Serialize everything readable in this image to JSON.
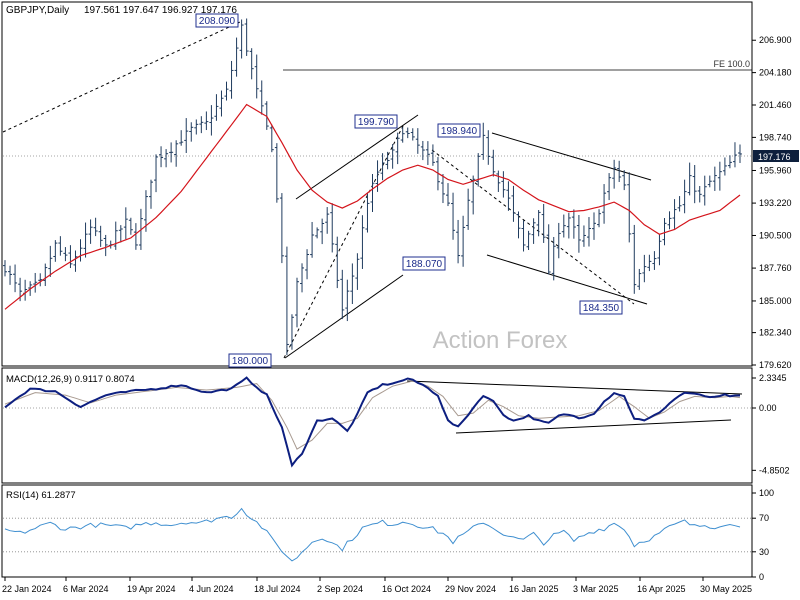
{
  "header": {
    "symbol_label": "GBPJPY,Daily",
    "ohlc": "197.561 197.647 196.927 197.176"
  },
  "watermark": "Action Forex",
  "colors": {
    "candles": "#1f3b5e",
    "sma": "#d4141b",
    "macd_line": "#0d1f80",
    "signal_line": "#a89a90",
    "rsi_line": "#3f8fd0",
    "grid_dotted": "#888888",
    "price_tag_bg": "#0d1f3c",
    "label_border": "#1f2f8f"
  },
  "chart_data": [
    {
      "type": "candlestick",
      "panel": "price",
      "ylim": [
        179.62,
        208.6
      ],
      "y_ticks": [
        "206.900",
        "204.180",
        "201.460",
        "198.740",
        "195.960",
        "193.220",
        "190.500",
        "187.760",
        "185.000",
        "182.340",
        "179.620"
      ],
      "x_ticks": [
        "22 Jan 2024",
        "6 Mar 2024",
        "19 Apr 2024",
        "4 Jun 2024",
        "18 Jul 2024",
        "2 Sep 2024",
        "16 Oct 2024",
        "29 Nov 2024",
        "16 Jan 2025",
        "3 Mar 2025",
        "16 Apr 2025",
        "30 May 2025"
      ],
      "last_price": 197.176,
      "last_price_label": "197.176",
      "fe_level": 204.4,
      "fe_label": "FE 100.0",
      "swing_labels": [
        {
          "text": "208.090",
          "value": 208.09,
          "x_day": 47
        },
        {
          "text": "180.000",
          "value": 180.0,
          "x_day": 56
        },
        {
          "text": "199.790",
          "value": 199.79,
          "x_day": 79
        },
        {
          "text": "188.070",
          "value": 188.07,
          "x_day": 91
        },
        {
          "text": "198.940",
          "value": 198.94,
          "x_day": 95
        },
        {
          "text": "184.350",
          "value": 184.35,
          "x_day": 125
        }
      ],
      "anchors": [
        [
          0,
          187.8
        ],
        [
          3,
          185.6
        ],
        [
          7,
          186.5
        ],
        [
          10,
          189.7
        ],
        [
          13,
          188.0
        ],
        [
          17,
          191.1
        ],
        [
          20,
          189.5
        ],
        [
          24,
          191.6
        ],
        [
          26,
          190.0
        ],
        [
          30,
          197.0
        ],
        [
          33,
          197.8
        ],
        [
          37,
          199.4
        ],
        [
          40,
          199.9
        ],
        [
          44,
          202.6
        ],
        [
          47,
          208.0
        ],
        [
          50,
          202.6
        ],
        [
          53,
          198.0
        ],
        [
          55,
          189.0
        ],
        [
          56,
          181.0
        ],
        [
          58,
          186.4
        ],
        [
          61,
          190.5
        ],
        [
          64,
          192.1
        ],
        [
          67,
          184.2
        ],
        [
          70,
          188.6
        ],
        [
          72,
          193.4
        ],
        [
          74,
          195.8
        ],
        [
          77,
          197.4
        ],
        [
          79,
          199.4
        ],
        [
          82,
          198.0
        ],
        [
          85,
          196.5
        ],
        [
          88,
          193.0
        ],
        [
          90,
          188.6
        ],
        [
          92,
          193.3
        ],
        [
          95,
          198.6
        ],
        [
          97,
          196.1
        ],
        [
          100,
          193.5
        ],
        [
          103,
          189.6
        ],
        [
          106,
          192.7
        ],
        [
          108,
          187.5
        ],
        [
          110,
          191.0
        ],
        [
          112,
          192.0
        ],
        [
          114,
          189.9
        ],
        [
          117,
          191.3
        ],
        [
          119,
          194.0
        ],
        [
          121,
          196.2
        ],
        [
          123,
          194.6
        ],
        [
          125,
          186.5
        ],
        [
          127,
          188.0
        ],
        [
          129,
          188.8
        ],
        [
          131,
          191.8
        ],
        [
          134,
          193.0
        ],
        [
          136,
          195.2
        ],
        [
          138,
          193.8
        ],
        [
          140,
          195.0
        ],
        [
          143,
          196.1
        ],
        [
          145,
          197.0
        ],
        [
          146,
          197.176
        ]
      ],
      "sma_anchors": [
        [
          0,
          184.3
        ],
        [
          5,
          186.0
        ],
        [
          10,
          187.5
        ],
        [
          15,
          188.8
        ],
        [
          20,
          189.5
        ],
        [
          25,
          190.3
        ],
        [
          30,
          192.0
        ],
        [
          35,
          194.2
        ],
        [
          40,
          197.0
        ],
        [
          45,
          199.8
        ],
        [
          48,
          201.5
        ],
        [
          52,
          200.5
        ],
        [
          55,
          198.3
        ],
        [
          58,
          196.0
        ],
        [
          61,
          194.3
        ],
        [
          64,
          193.3
        ],
        [
          67,
          192.8
        ],
        [
          70,
          193.4
        ],
        [
          73,
          194.4
        ],
        [
          76,
          195.3
        ],
        [
          79,
          196.0
        ],
        [
          82,
          196.4
        ],
        [
          85,
          196.0
        ],
        [
          88,
          195.2
        ],
        [
          91,
          194.8
        ],
        [
          94,
          195.2
        ],
        [
          97,
          195.6
        ],
        [
          100,
          195.2
        ],
        [
          103,
          194.3
        ],
        [
          106,
          193.5
        ],
        [
          109,
          193.0
        ],
        [
          112,
          192.5
        ],
        [
          115,
          192.6
        ],
        [
          118,
          192.9
        ],
        [
          121,
          193.3
        ],
        [
          124,
          192.6
        ],
        [
          127,
          191.4
        ],
        [
          130,
          190.6
        ],
        [
          133,
          191.0
        ],
        [
          136,
          191.8
        ],
        [
          139,
          192.2
        ],
        [
          142,
          192.6
        ],
        [
          146,
          193.9
        ]
      ]
    },
    {
      "type": "line",
      "panel": "macd",
      "title": "MACD(12,26,9) 0.9117 0.8074",
      "ylim": [
        -5.1,
        3.0
      ],
      "y_ticks": [
        "2.3345",
        "0.00",
        "-4.8502"
      ],
      "series": [
        {
          "role": "macd",
          "anchors": [
            [
              0,
              0.1
            ],
            [
              5,
              1.5
            ],
            [
              10,
              1.3
            ],
            [
              15,
              0.1
            ],
            [
              20,
              1.0
            ],
            [
              25,
              1.3
            ],
            [
              30,
              1.5
            ],
            [
              35,
              1.8
            ],
            [
              40,
              1.2
            ],
            [
              45,
              1.5
            ],
            [
              48,
              2.3
            ],
            [
              52,
              1.0
            ],
            [
              55,
              -1.5
            ],
            [
              57,
              -4.5
            ],
            [
              59,
              -3.5
            ],
            [
              62,
              -1.0
            ],
            [
              65,
              -0.8
            ],
            [
              68,
              -1.8
            ],
            [
              70,
              -0.5
            ],
            [
              72,
              1.2
            ],
            [
              75,
              1.8
            ],
            [
              78,
              2.0
            ],
            [
              80,
              2.3
            ],
            [
              83,
              1.8
            ],
            [
              86,
              1.0
            ],
            [
              88,
              -1.0
            ],
            [
              90,
              -1.5
            ],
            [
              92,
              -0.5
            ],
            [
              95,
              1.0
            ],
            [
              97,
              0.5
            ],
            [
              99,
              -0.5
            ],
            [
              101,
              -1.0
            ],
            [
              104,
              -0.6
            ],
            [
              106,
              -1.0
            ],
            [
              108,
              -1.2
            ],
            [
              110,
              -0.6
            ],
            [
              112,
              -0.5
            ],
            [
              114,
              -0.8
            ],
            [
              117,
              -0.4
            ],
            [
              119,
              0.5
            ],
            [
              121,
              1.2
            ],
            [
              123,
              0.9
            ],
            [
              125,
              -0.8
            ],
            [
              127,
              -1.0
            ],
            [
              129,
              -0.6
            ],
            [
              131,
              0.0
            ],
            [
              133,
              0.7
            ],
            [
              135,
              1.2
            ],
            [
              138,
              1.0
            ],
            [
              141,
              0.8
            ],
            [
              143,
              1.0
            ],
            [
              145,
              0.9
            ],
            [
              146,
              0.9117
            ]
          ]
        },
        {
          "role": "signal",
          "anchors": [
            [
              0,
              0.3
            ],
            [
              6,
              1.2
            ],
            [
              12,
              1.0
            ],
            [
              17,
              0.4
            ],
            [
              22,
              1.0
            ],
            [
              28,
              1.3
            ],
            [
              34,
              1.6
            ],
            [
              40,
              1.4
            ],
            [
              46,
              1.6
            ],
            [
              50,
              1.9
            ],
            [
              53,
              0.6
            ],
            [
              56,
              -1.5
            ],
            [
              58,
              -3.2
            ],
            [
              61,
              -2.5
            ],
            [
              64,
              -1.2
            ],
            [
              67,
              -1.2
            ],
            [
              70,
              -0.8
            ],
            [
              73,
              0.8
            ],
            [
              77,
              1.7
            ],
            [
              81,
              2.1
            ],
            [
              84,
              1.7
            ],
            [
              87,
              0.9
            ],
            [
              90,
              -0.6
            ],
            [
              93,
              -0.4
            ],
            [
              96,
              0.6
            ],
            [
              99,
              0.1
            ],
            [
              102,
              -0.6
            ],
            [
              106,
              -0.8
            ],
            [
              110,
              -0.7
            ],
            [
              114,
              -0.6
            ],
            [
              118,
              -0.2
            ],
            [
              122,
              0.9
            ],
            [
              125,
              0.1
            ],
            [
              128,
              -0.8
            ],
            [
              131,
              -0.3
            ],
            [
              134,
              0.5
            ],
            [
              137,
              0.9
            ],
            [
              141,
              0.8
            ],
            [
              144,
              0.9
            ],
            [
              146,
              0.8074
            ]
          ]
        }
      ]
    },
    {
      "type": "line",
      "panel": "rsi",
      "title": "RSI(14) 61.2877",
      "ylim": [
        0,
        100
      ],
      "y_ticks": [
        "100",
        "70",
        "30",
        "0"
      ],
      "series": [
        {
          "role": "rsi",
          "anchors": [
            [
              0,
              56
            ],
            [
              3,
              52
            ],
            [
              6,
              58
            ],
            [
              9,
              64
            ],
            [
              12,
              57
            ],
            [
              15,
              60
            ],
            [
              18,
              62
            ],
            [
              21,
              61
            ],
            [
              24,
              58
            ],
            [
              27,
              63
            ],
            [
              30,
              65
            ],
            [
              33,
              62
            ],
            [
              36,
              66
            ],
            [
              39,
              64
            ],
            [
              42,
              70
            ],
            [
              45,
              72
            ],
            [
              47,
              82
            ],
            [
              49,
              70
            ],
            [
              51,
              60
            ],
            [
              53,
              45
            ],
            [
              55,
              32
            ],
            [
              57,
              18
            ],
            [
              59,
              30
            ],
            [
              61,
              42
            ],
            [
              63,
              48
            ],
            [
              65,
              40
            ],
            [
              67,
              34
            ],
            [
              69,
              46
            ],
            [
              71,
              58
            ],
            [
              73,
              62
            ],
            [
              75,
              65
            ],
            [
              77,
              63
            ],
            [
              79,
              66
            ],
            [
              81,
              64
            ],
            [
              83,
              60
            ],
            [
              85,
              57
            ],
            [
              87,
              52
            ],
            [
              89,
              42
            ],
            [
              91,
              50
            ],
            [
              93,
              58
            ],
            [
              95,
              66
            ],
            [
              97,
              58
            ],
            [
              99,
              52
            ],
            [
              101,
              46
            ],
            [
              103,
              44
            ],
            [
              105,
              51
            ],
            [
              107,
              41
            ],
            [
              109,
              49
            ],
            [
              111,
              54
            ],
            [
              113,
              43
            ],
            [
              115,
              50
            ],
            [
              117,
              55
            ],
            [
              119,
              58
            ],
            [
              121,
              64
            ],
            [
              123,
              58
            ],
            [
              125,
              38
            ],
            [
              127,
              44
            ],
            [
              129,
              48
            ],
            [
              131,
              56
            ],
            [
              133,
              62
            ],
            [
              135,
              66
            ],
            [
              137,
              60
            ],
            [
              139,
              62
            ],
            [
              141,
              60
            ],
            [
              143,
              64
            ],
            [
              145,
              60
            ],
            [
              146,
              61.2877
            ]
          ]
        }
      ]
    }
  ]
}
